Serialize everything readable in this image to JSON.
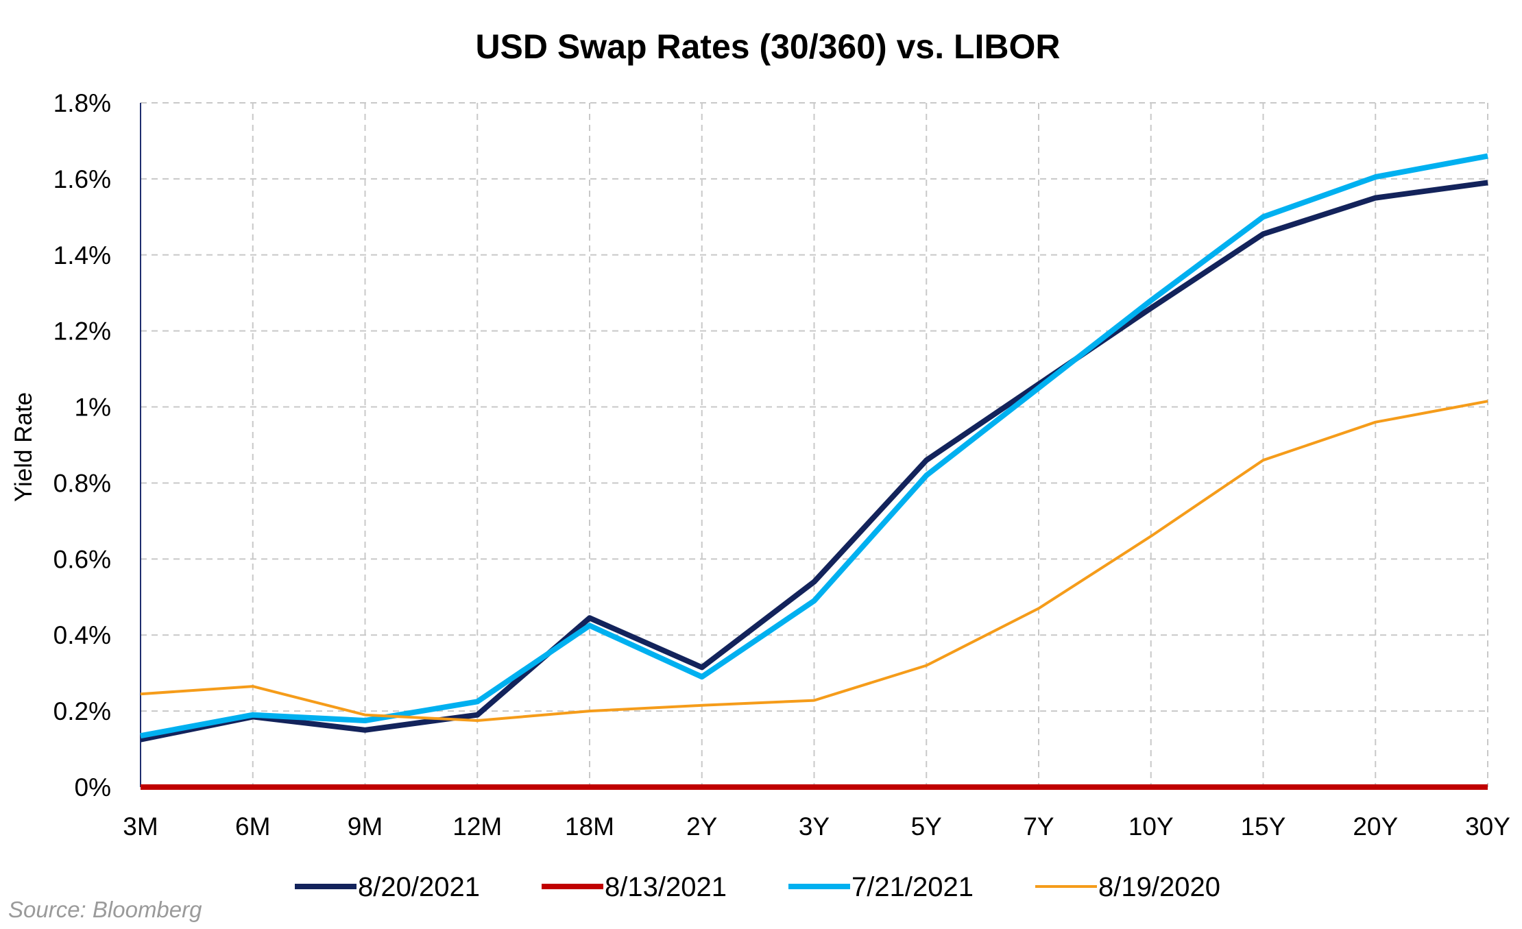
{
  "chart_data": {
    "type": "line",
    "title": "USD Swap Rates (30/360) vs. LIBOR",
    "xlabel": "",
    "ylabel": "Yield Rate",
    "categories": [
      "3M",
      "6M",
      "9M",
      "12M",
      "18M",
      "2Y",
      "3Y",
      "5Y",
      "7Y",
      "10Y",
      "15Y",
      "20Y",
      "30Y"
    ],
    "y_tick_labels": [
      "0%",
      "0.2%",
      "0.4%",
      "0.6%",
      "0.8%",
      "1%",
      "1.2%",
      "1.4%",
      "1.6%",
      "1.8%"
    ],
    "ylim": [
      0,
      1.8
    ],
    "y_unit": "%",
    "grid": true,
    "legend_position": "bottom",
    "series": [
      {
        "name": "8/20/2021",
        "color": "#13235b",
        "width": "thick",
        "values": [
          0.125,
          0.185,
          0.15,
          0.19,
          0.445,
          0.315,
          0.54,
          0.86,
          1.06,
          1.26,
          1.455,
          1.55,
          1.59
        ]
      },
      {
        "name": "8/13/2021",
        "color": "#c00000",
        "width": "thick",
        "values": [
          0,
          0,
          0,
          0,
          0,
          0,
          0,
          0,
          0,
          0,
          0,
          0,
          0
        ]
      },
      {
        "name": "7/21/2021",
        "color": "#00b0f0",
        "width": "thick",
        "values": [
          0.135,
          0.19,
          0.175,
          0.225,
          0.425,
          0.29,
          0.49,
          0.82,
          1.05,
          1.28,
          1.5,
          1.605,
          1.66
        ]
      },
      {
        "name": "8/19/2020",
        "color": "#f59c1a",
        "width": "thin",
        "values": [
          0.245,
          0.265,
          0.19,
          0.175,
          0.2,
          0.215,
          0.228,
          0.32,
          0.47,
          0.66,
          0.86,
          0.96,
          1.015
        ]
      }
    ],
    "source": "Source: Bloomberg"
  }
}
